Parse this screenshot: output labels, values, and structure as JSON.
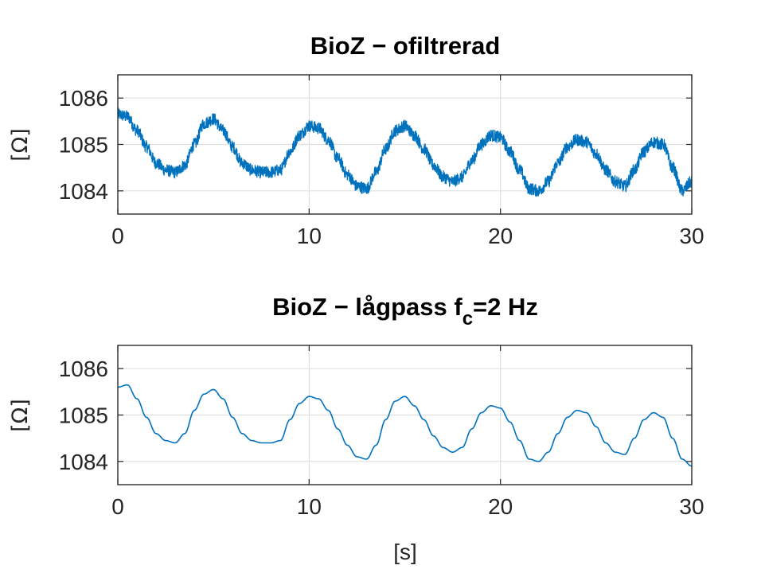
{
  "chart_data": [
    {
      "type": "line",
      "title": "BioZ − ofiltrerad",
      "title_main": "BioZ − ofiltrerad",
      "title_sub": "",
      "title_after": "",
      "xlabel": "",
      "ylabel": "[Ω]",
      "xlim": [
        0,
        30
      ],
      "ylim": [
        1083.5,
        1086.5
      ],
      "xticks": [
        0,
        10,
        20,
        30
      ],
      "yticks": [
        1084,
        1085,
        1086
      ],
      "grid": true,
      "color": "#0072BD",
      "noise_amplitude": 0.13,
      "series": [
        {
          "x": [
            0,
            0.5,
            1,
            1.5,
            2,
            2.5,
            3,
            3.5,
            4,
            4.5,
            5,
            5.5,
            6,
            6.5,
            7,
            7.5,
            8,
            8.5,
            9,
            9.5,
            10,
            10.5,
            11,
            11.5,
            12,
            12.5,
            13,
            13.5,
            14,
            14.5,
            15,
            15.5,
            16,
            16.5,
            17,
            17.5,
            18,
            18.5,
            19,
            19.5,
            20,
            20.5,
            21,
            21.5,
            22,
            22.5,
            23,
            23.5,
            24,
            24.5,
            25,
            25.5,
            26,
            26.5,
            27,
            27.5,
            28,
            28.5,
            29,
            29.5,
            30
          ],
          "values": [
            1085.65,
            1085.6,
            1085.3,
            1084.95,
            1084.6,
            1084.45,
            1084.4,
            1084.55,
            1085.0,
            1085.45,
            1085.55,
            1085.3,
            1084.95,
            1084.6,
            1084.45,
            1084.4,
            1084.4,
            1084.45,
            1084.85,
            1085.2,
            1085.4,
            1085.35,
            1085.1,
            1084.7,
            1084.35,
            1084.1,
            1084.05,
            1084.4,
            1084.9,
            1085.3,
            1085.4,
            1085.2,
            1084.9,
            1084.55,
            1084.3,
            1084.2,
            1084.3,
            1084.65,
            1085.0,
            1085.2,
            1085.15,
            1084.85,
            1084.45,
            1084.05,
            1084.0,
            1084.2,
            1084.6,
            1084.95,
            1085.1,
            1085.05,
            1084.8,
            1084.45,
            1084.2,
            1084.1,
            1084.45,
            1084.85,
            1085.05,
            1085.0,
            1084.5,
            1084.0,
            1084.2
          ]
        }
      ]
    },
    {
      "type": "line",
      "title": "BioZ − lågpass fc=2 Hz",
      "title_main": "BioZ − lågpass f",
      "title_sub": "c",
      "title_after": "=2 Hz",
      "xlabel": "[s]",
      "ylabel": "[Ω]",
      "xlim": [
        0,
        30
      ],
      "ylim": [
        1083.5,
        1086.5
      ],
      "xticks": [
        0,
        10,
        20,
        30
      ],
      "yticks": [
        1084,
        1085,
        1086
      ],
      "grid": true,
      "color": "#0072BD",
      "noise_amplitude": 0,
      "series": [
        {
          "x": [
            0,
            0.5,
            1,
            1.5,
            2,
            2.5,
            3,
            3.5,
            4,
            4.5,
            5,
            5.5,
            6,
            6.5,
            7,
            7.5,
            8,
            8.5,
            9,
            9.5,
            10,
            10.5,
            11,
            11.5,
            12,
            12.5,
            13,
            13.5,
            14,
            14.5,
            15,
            15.5,
            16,
            16.5,
            17,
            17.5,
            18,
            18.5,
            19,
            19.5,
            20,
            20.5,
            21,
            21.5,
            22,
            22.5,
            23,
            23.5,
            24,
            24.5,
            25,
            25.5,
            26,
            26.5,
            27,
            27.5,
            28,
            28.5,
            29,
            29.5,
            30
          ],
          "values": [
            1085.6,
            1085.65,
            1085.35,
            1084.95,
            1084.6,
            1084.45,
            1084.4,
            1084.6,
            1085.1,
            1085.45,
            1085.55,
            1085.35,
            1084.95,
            1084.6,
            1084.45,
            1084.4,
            1084.4,
            1084.45,
            1084.9,
            1085.25,
            1085.4,
            1085.35,
            1085.1,
            1084.7,
            1084.35,
            1084.1,
            1084.05,
            1084.35,
            1084.9,
            1085.3,
            1085.4,
            1085.2,
            1084.9,
            1084.55,
            1084.3,
            1084.2,
            1084.3,
            1084.7,
            1085.05,
            1085.2,
            1085.15,
            1084.85,
            1084.45,
            1084.05,
            1084.0,
            1084.2,
            1084.6,
            1084.95,
            1085.1,
            1085.05,
            1084.75,
            1084.4,
            1084.2,
            1084.15,
            1084.5,
            1084.9,
            1085.05,
            1084.95,
            1084.5,
            1084.05,
            1083.9
          ]
        }
      ]
    }
  ]
}
